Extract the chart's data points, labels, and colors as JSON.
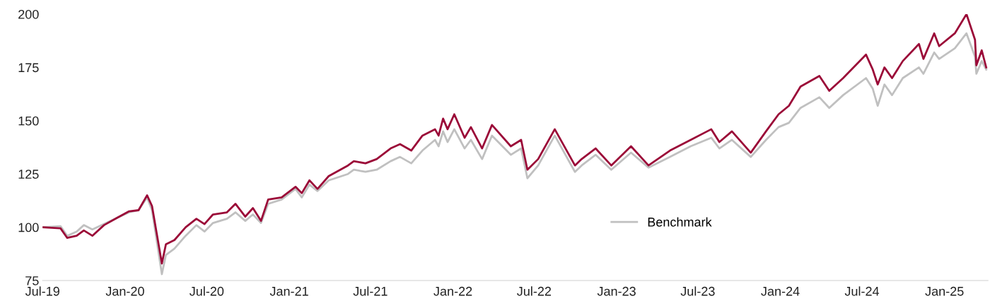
{
  "chart_data": {
    "type": "line",
    "x": [
      "2019-07-01",
      "2019-08-10",
      "2019-08-25",
      "2019-09-15",
      "2019-10-01",
      "2019-10-20",
      "2019-11-15",
      "2019-12-15",
      "2020-01-10",
      "2020-01-31",
      "2020-02-19",
      "2020-03-01",
      "2020-03-23",
      "2020-04-01",
      "2020-04-20",
      "2020-05-15",
      "2020-06-08",
      "2020-06-26",
      "2020-07-15",
      "2020-08-15",
      "2020-09-03",
      "2020-09-25",
      "2020-10-12",
      "2020-10-30",
      "2020-11-15",
      "2020-12-15",
      "2021-01-15",
      "2021-01-29",
      "2021-02-15",
      "2021-03-05",
      "2021-03-30",
      "2021-05-12",
      "2021-05-25",
      "2021-06-20",
      "2021-07-15",
      "2021-08-15",
      "2021-09-05",
      "2021-09-30",
      "2021-10-25",
      "2021-11-22",
      "2021-11-30",
      "2021-12-10",
      "2021-12-20",
      "2022-01-04",
      "2022-01-27",
      "2022-02-10",
      "2022-03-07",
      "2022-03-29",
      "2022-05-10",
      "2022-06-02",
      "2022-06-16",
      "2022-07-10",
      "2022-08-16",
      "2022-09-30",
      "2022-10-15",
      "2022-11-15",
      "2022-12-20",
      "2023-02-02",
      "2023-03-13",
      "2023-04-30",
      "2023-06-15",
      "2023-07-31",
      "2023-08-18",
      "2023-09-15",
      "2023-10-27",
      "2023-11-30",
      "2023-12-28",
      "2024-01-20",
      "2024-02-15",
      "2024-03-28",
      "2024-04-19",
      "2024-05-20",
      "2024-07-10",
      "2024-07-25",
      "2024-08-05",
      "2024-08-20",
      "2024-09-06",
      "2024-09-30",
      "2024-11-05",
      "2024-11-15",
      "2024-12-09",
      "2024-12-20",
      "2025-01-24",
      "2025-02-19",
      "2025-03-10",
      "2025-03-13",
      "2025-03-25",
      "2025-04-04"
    ],
    "series": [
      {
        "name": "Benchmark",
        "color": "#c0c0c0",
        "values": [
          100,
          100.5,
          96,
          98,
          101,
          99,
          101.5,
          104.5,
          107,
          108,
          114,
          108,
          78,
          87,
          90,
          96,
          101,
          98,
          102,
          104,
          107,
          103,
          106,
          102,
          111,
          113,
          118,
          114,
          120,
          117,
          122,
          125,
          127,
          126,
          127,
          131,
          133,
          130,
          136,
          141,
          138,
          145,
          140,
          146,
          137,
          141,
          132,
          143,
          134,
          137,
          123,
          129,
          143,
          126,
          129,
          134,
          127,
          135,
          128,
          133,
          138,
          142,
          137,
          141,
          133,
          141,
          147,
          149,
          156,
          161,
          156,
          162,
          170,
          165,
          157,
          167,
          162,
          170,
          175,
          172,
          182,
          179,
          184,
          191,
          180,
          172,
          178,
          174
        ]
      },
      {
        "color": "#9b0a38",
        "values": [
          100,
          99.5,
          95,
          96,
          98.5,
          96,
          101,
          104.5,
          107.5,
          108,
          115,
          110,
          83,
          92,
          94,
          100,
          104,
          101.5,
          106,
          107,
          111,
          105,
          109,
          103,
          113,
          114,
          119,
          116,
          122,
          118,
          124,
          129,
          131,
          130,
          132,
          137,
          139,
          136,
          143,
          146,
          143,
          151,
          146,
          153,
          142,
          147,
          137,
          148,
          138,
          141,
          127,
          132,
          146,
          129,
          132,
          137,
          129,
          138,
          129,
          136,
          141,
          146,
          140,
          145,
          135,
          145,
          153,
          157,
          166,
          171,
          164,
          170,
          181,
          174,
          167,
          175,
          170,
          178,
          186,
          179,
          191,
          185,
          191,
          200,
          188,
          176,
          183,
          175
        ]
      }
    ],
    "xlim": [
      "2019-07-01",
      "2025-04-08"
    ],
    "xticks": [
      {
        "value": "2019-07-01",
        "label": "Jul-19"
      },
      {
        "value": "2020-01-01",
        "label": "Jan-20"
      },
      {
        "value": "2020-07-01",
        "label": "Jul-20"
      },
      {
        "value": "2021-01-01",
        "label": "Jan-21"
      },
      {
        "value": "2021-07-01",
        "label": "Jul-21"
      },
      {
        "value": "2022-01-01",
        "label": "Jan-22"
      },
      {
        "value": "2022-07-01",
        "label": "Jul-22"
      },
      {
        "value": "2023-01-01",
        "label": "Jan-23"
      },
      {
        "value": "2023-07-01",
        "label": "Jul-23"
      },
      {
        "value": "2024-01-01",
        "label": "Jan-24"
      },
      {
        "value": "2024-07-01",
        "label": "Jul-24"
      },
      {
        "value": "2025-01-01",
        "label": "Jan-25"
      }
    ],
    "ylim": [
      75,
      200
    ],
    "yticks": [
      75,
      100,
      125,
      150,
      175,
      200
    ],
    "grid": false,
    "legend": "bottom right"
  }
}
